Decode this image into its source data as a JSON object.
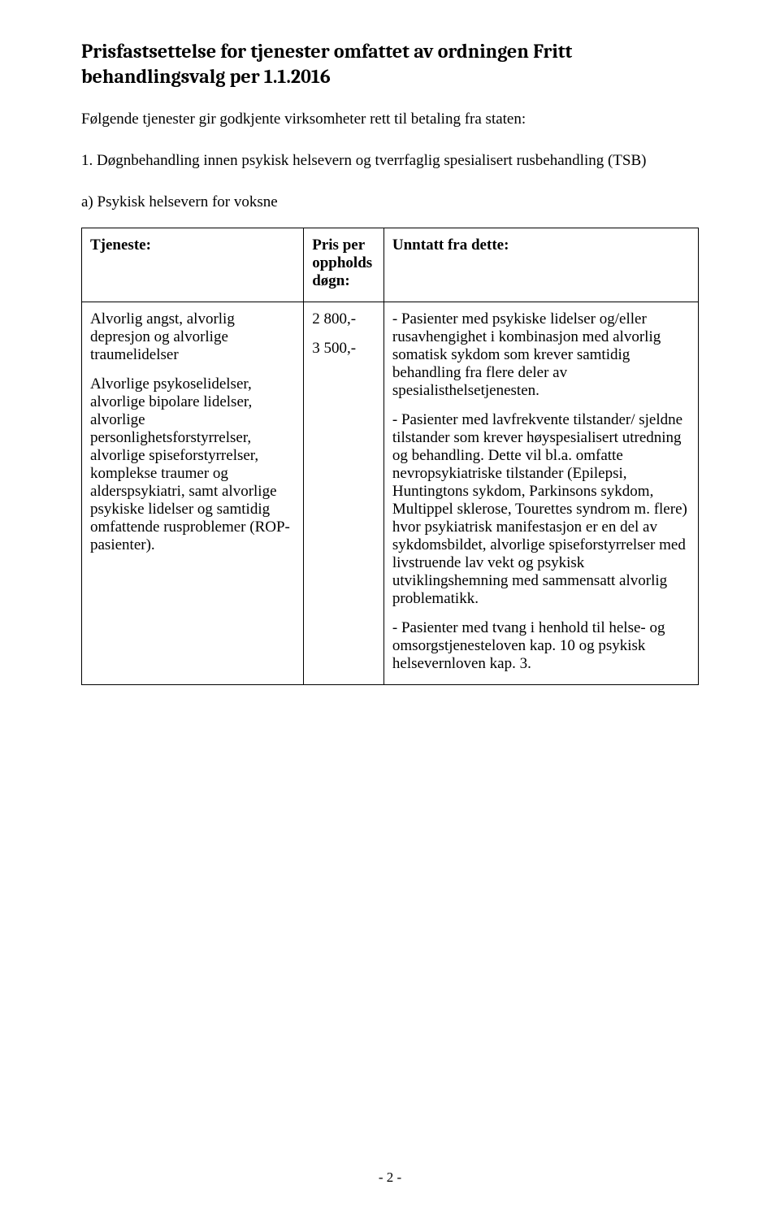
{
  "title": "Prisfastsettelse for tjenester omfattet av ordningen Fritt behandlingsvalg per 1.1.2016",
  "intro": "Følgende tjenester gir godkjente virksomheter rett til betaling fra staten:",
  "section": {
    "number": "1.",
    "heading": "Døgnbehandling innen psykisk helsevern og tverrfaglig spesialisert rusbehandling (TSB)",
    "sub": "a) Psykisk helsevern for voksne"
  },
  "table": {
    "headers": {
      "service": "Tjeneste:",
      "price": "Pris per opphold­s døgn:",
      "except": "Unntatt fra dette:"
    },
    "rows": [
      {
        "services": [
          "Alvorlig angst, alvorlig depresjon og alvorlige traumelidelser",
          "Alvorlige psykoselidelser, alvorlige bipolare lidelser, alvorlige personlighetsforstyrrelser, alvorlige spiseforstyrrelser, komplekse traumer og alderspsykiatri, samt alvorlige psykiske lidelser og samtidig omfattende rusproblemer (ROP-pasienter)."
        ],
        "prices": [
          "2 800,-",
          "3 500,-"
        ],
        "exceptions": [
          "- Pasienter med psykiske lidelser og/eller rusavhengighet i kombinasjon med alvorlig somatisk sykdom som krever samtidig behandling fra flere deler av spesialisthelsetjenesten.",
          "- Pasienter med lavfrekvente tilstander/ sjeldne tilstander som krever høyspesialisert utredning og behandling. Dette vil bl.a. omfatte nevropsykiatriske tilstander (Epilepsi, Huntingtons sykdom, Parkinsons sykdom, Multippel sklerose, Tourettes syndrom m. flere) hvor psykiatrisk manifestasjon er en del av sykdomsbildet, alvorlige spiseforstyrrelser med livstruende lav vekt og psykisk utviklingshemning med sammensatt alvorlig problematikk.",
          "- Pasienter med tvang i henhold til helse- og omsorgstjenesteloven kap. 10 og psykisk helsevernloven kap. 3."
        ]
      }
    ]
  },
  "footer": "- 2 -"
}
